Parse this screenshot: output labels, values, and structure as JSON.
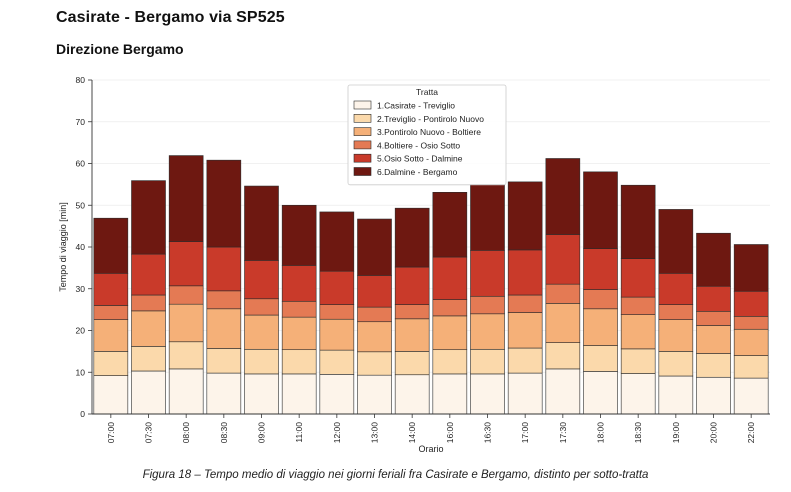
{
  "page": {
    "title": "Casirate - Bergamo via SP525",
    "subtitle": "Direzione Bergamo",
    "caption": "Figura 18 – Tempo medio di viaggio nei giorni feriali fra Casirate e Bergamo, distinto per sotto-tratta"
  },
  "chart_data": {
    "type": "bar",
    "stacked": true,
    "title": "",
    "xlabel": "Orario",
    "ylabel": "Tempo di viaggio [min]",
    "ylim": [
      0,
      80
    ],
    "yticks": [
      0,
      10,
      20,
      30,
      40,
      50,
      60,
      70,
      80
    ],
    "grid": true,
    "legend_title": "Tratta",
    "legend_position": "top-center",
    "categories": [
      "07:00",
      "07:30",
      "08:00",
      "08:30",
      "09:00",
      "11:00",
      "12:00",
      "13:00",
      "14:00",
      "16:00",
      "16:30",
      "17:00",
      "17:30",
      "18:00",
      "18:30",
      "19:00",
      "20:00",
      "22:00"
    ],
    "series": [
      {
        "name": "1.Casirate - Treviglio",
        "color": "#fdf4ea",
        "values": [
          9.2,
          10.3,
          10.8,
          9.8,
          9.6,
          9.6,
          9.5,
          9.3,
          9.4,
          9.6,
          9.6,
          9.8,
          10.8,
          10.2,
          9.7,
          9.1,
          8.8,
          8.6
        ]
      },
      {
        "name": "2.Treviglio - Pontirolo Nuovo",
        "color": "#fbd9ab",
        "values": [
          5.8,
          5.9,
          6.5,
          5.9,
          5.9,
          5.8,
          5.8,
          5.6,
          5.6,
          5.8,
          5.9,
          6.0,
          6.3,
          6.2,
          5.9,
          5.9,
          5.7,
          5.4
        ]
      },
      {
        "name": "3.Pontirolo Nuovo - Boltiere",
        "color": "#f5b078",
        "values": [
          7.6,
          8.5,
          9.0,
          9.5,
          8.2,
          7.8,
          7.4,
          7.2,
          7.8,
          8.1,
          8.5,
          8.5,
          9.4,
          8.8,
          8.2,
          7.6,
          6.7,
          6.3
        ]
      },
      {
        "name": "4.Boltiere - Osio Sotto",
        "color": "#e47a54",
        "values": [
          3.4,
          3.8,
          4.4,
          4.3,
          3.9,
          3.8,
          3.5,
          3.5,
          3.4,
          3.9,
          4.2,
          4.2,
          4.6,
          4.6,
          4.2,
          3.6,
          3.4,
          3.1
        ]
      },
      {
        "name": "5.Osio Sotto - Dalmine",
        "color": "#c93a2a",
        "values": [
          7.7,
          9.8,
          10.6,
          10.5,
          9.2,
          8.6,
          8.0,
          7.6,
          9.0,
          10.2,
          11.0,
          10.8,
          11.9,
          9.8,
          9.2,
          7.5,
          6.0,
          6.0
        ]
      },
      {
        "name": "6.Dalmine - Bergamo",
        "color": "#6e1811",
        "values": [
          13.2,
          17.6,
          20.6,
          20.8,
          17.8,
          14.4,
          14.2,
          13.5,
          14.1,
          15.5,
          15.8,
          16.3,
          18.2,
          18.4,
          17.6,
          15.3,
          12.7,
          11.2
        ]
      }
    ]
  }
}
